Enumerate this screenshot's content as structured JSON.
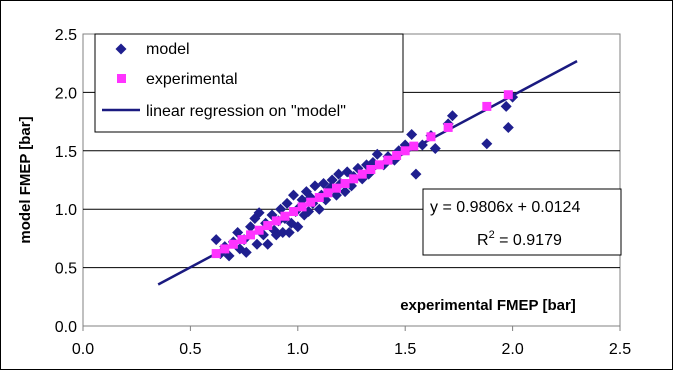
{
  "chart_data": {
    "type": "scatter",
    "xlabel": "experimental FMEP [bar]",
    "ylabel": "model FMEP [bar]",
    "xlim": [
      0.0,
      2.5
    ],
    "ylim": [
      0.0,
      2.5
    ],
    "x_ticks": [
      "0.0",
      "0.5",
      "1.0",
      "1.5",
      "2.0",
      "2.5"
    ],
    "y_ticks": [
      "0.0",
      "0.5",
      "1.0",
      "1.5",
      "2.0",
      "2.5"
    ],
    "grid": "horizontal",
    "legend_position": "top-left",
    "legend": [
      {
        "label": "model",
        "marker": "diamond",
        "color": "#1f1f8f"
      },
      {
        "label": "experimental",
        "marker": "square",
        "color": "#ff33ff"
      },
      {
        "label": "linear regression on \"model\"",
        "marker": "line",
        "color": "#1a1a80"
      }
    ],
    "equation": {
      "line1": "y = 0.9806x + 0.0124",
      "r2_prefix": "R",
      "r2_sup": "2",
      "r2_suffix": " = 0.9179"
    },
    "regression": {
      "slope": 0.9806,
      "intercept": 0.0124,
      "x_range": [
        0.35,
        2.3
      ]
    },
    "series": [
      {
        "name": "model",
        "marker": "diamond",
        "color": "#1f1f8f",
        "points": [
          [
            0.62,
            0.74
          ],
          [
            0.64,
            0.62
          ],
          [
            0.66,
            0.68
          ],
          [
            0.68,
            0.6
          ],
          [
            0.7,
            0.72
          ],
          [
            0.72,
            0.8
          ],
          [
            0.73,
            0.66
          ],
          [
            0.75,
            0.74
          ],
          [
            0.76,
            0.63
          ],
          [
            0.78,
            0.85
          ],
          [
            0.8,
            0.92
          ],
          [
            0.81,
            0.7
          ],
          [
            0.82,
            0.97
          ],
          [
            0.84,
            0.78
          ],
          [
            0.85,
            0.88
          ],
          [
            0.86,
            0.7
          ],
          [
            0.88,
            0.95
          ],
          [
            0.89,
            0.82
          ],
          [
            0.9,
            0.78
          ],
          [
            0.91,
            0.9
          ],
          [
            0.92,
            1.0
          ],
          [
            0.93,
            0.8
          ],
          [
            0.94,
            0.92
          ],
          [
            0.95,
            1.05
          ],
          [
            0.96,
            0.8
          ],
          [
            0.97,
            0.88
          ],
          [
            0.98,
            1.12
          ],
          [
            0.99,
            0.98
          ],
          [
            1.0,
            0.85
          ],
          [
            1.01,
            1.02
          ],
          [
            1.02,
            1.08
          ],
          [
            1.03,
            0.95
          ],
          [
            1.04,
            1.15
          ],
          [
            1.05,
            0.98
          ],
          [
            1.06,
            1.1
          ],
          [
            1.07,
            1.05
          ],
          [
            1.08,
            1.2
          ],
          [
            1.1,
            1.0
          ],
          [
            1.11,
            1.12
          ],
          [
            1.12,
            1.22
          ],
          [
            1.13,
            1.08
          ],
          [
            1.15,
            1.18
          ],
          [
            1.16,
            1.25
          ],
          [
            1.18,
            1.12
          ],
          [
            1.19,
            1.3
          ],
          [
            1.2,
            1.22
          ],
          [
            1.22,
            1.15
          ],
          [
            1.23,
            1.32
          ],
          [
            1.25,
            1.2
          ],
          [
            1.26,
            1.28
          ],
          [
            1.28,
            1.35
          ],
          [
            1.3,
            1.26
          ],
          [
            1.32,
            1.38
          ],
          [
            1.33,
            1.3
          ],
          [
            1.35,
            1.4
          ],
          [
            1.37,
            1.47
          ],
          [
            1.4,
            1.38
          ],
          [
            1.42,
            1.45
          ],
          [
            1.45,
            1.42
          ],
          [
            1.47,
            1.5
          ],
          [
            1.5,
            1.55
          ],
          [
            1.53,
            1.64
          ],
          [
            1.55,
            1.3
          ],
          [
            1.58,
            1.55
          ],
          [
            1.62,
            1.63
          ],
          [
            1.64,
            1.52
          ],
          [
            1.7,
            1.73
          ],
          [
            1.72,
            1.8
          ],
          [
            1.88,
            1.56
          ],
          [
            1.97,
            1.88
          ],
          [
            1.98,
            1.7
          ],
          [
            2.0,
            1.96
          ]
        ]
      },
      {
        "name": "experimental",
        "marker": "square",
        "color": "#ff33ff",
        "points": [
          [
            0.62,
            0.62
          ],
          [
            0.66,
            0.66
          ],
          [
            0.7,
            0.7
          ],
          [
            0.74,
            0.74
          ],
          [
            0.78,
            0.78
          ],
          [
            0.82,
            0.82
          ],
          [
            0.86,
            0.86
          ],
          [
            0.9,
            0.9
          ],
          [
            0.94,
            0.94
          ],
          [
            0.98,
            0.98
          ],
          [
            1.02,
            1.02
          ],
          [
            1.06,
            1.06
          ],
          [
            1.1,
            1.1
          ],
          [
            1.14,
            1.14
          ],
          [
            1.18,
            1.18
          ],
          [
            1.22,
            1.22
          ],
          [
            1.26,
            1.26
          ],
          [
            1.3,
            1.3
          ],
          [
            1.34,
            1.34
          ],
          [
            1.38,
            1.38
          ],
          [
            1.42,
            1.42
          ],
          [
            1.46,
            1.46
          ],
          [
            1.5,
            1.5
          ],
          [
            1.54,
            1.54
          ],
          [
            1.62,
            1.62
          ],
          [
            1.7,
            1.7
          ],
          [
            1.88,
            1.88
          ],
          [
            1.98,
            1.98
          ]
        ]
      }
    ]
  }
}
